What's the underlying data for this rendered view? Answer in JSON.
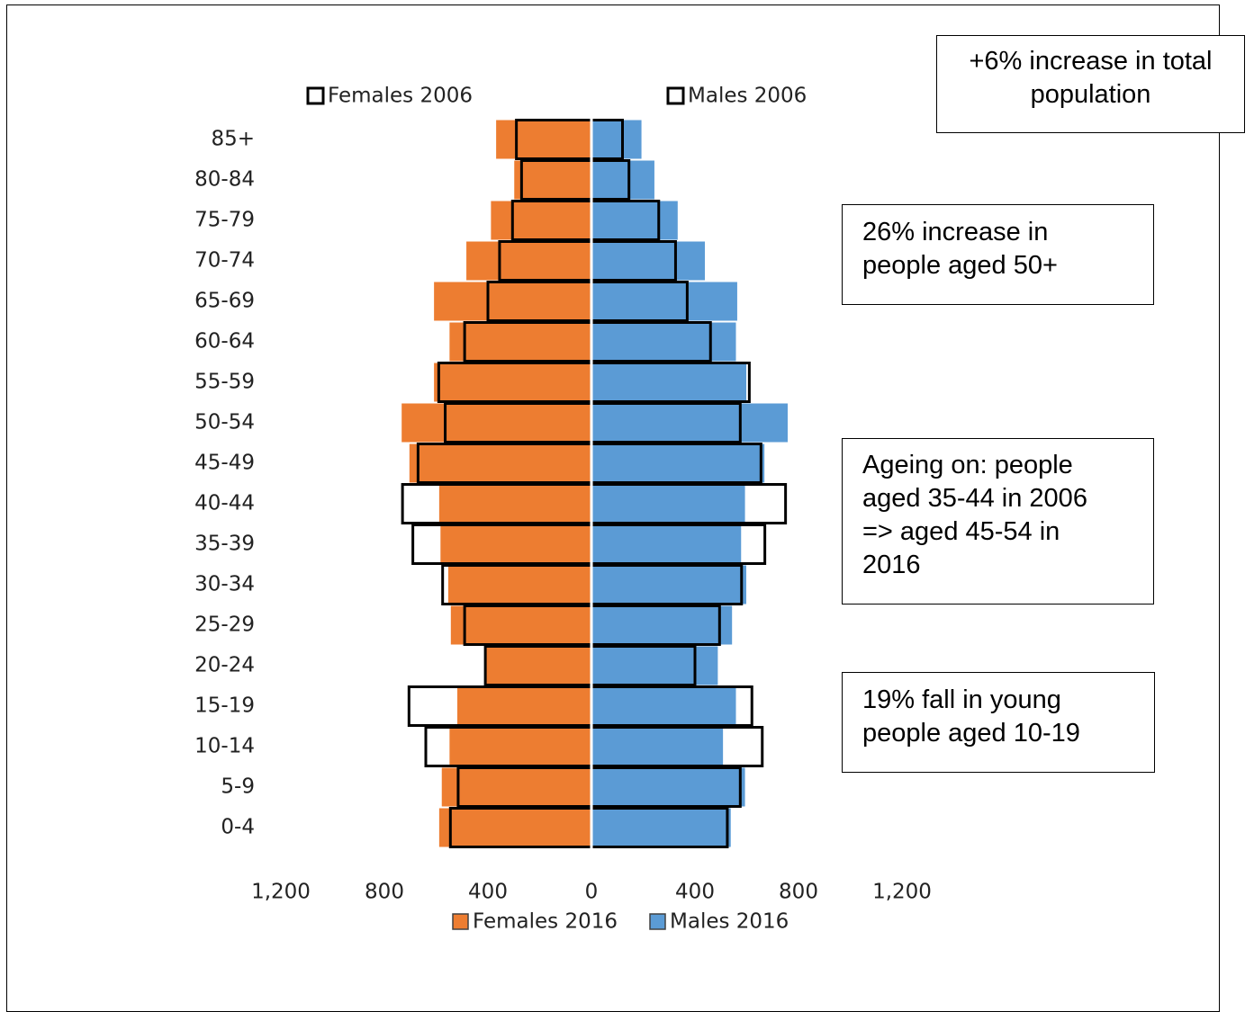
{
  "chart_data": {
    "type": "bar",
    "orientation": "horizontal",
    "layout": "population-pyramid",
    "categories": [
      "0-4",
      "5-9",
      "10-14",
      "15-19",
      "20-24",
      "25-29",
      "30-34",
      "35-39",
      "40-44",
      "45-49",
      "50-54",
      "55-59",
      "60-64",
      "65-69",
      "70-74",
      "75-79",
      "80-84",
      "85+"
    ],
    "series": [
      {
        "name": "Females 2016",
        "side": "left",
        "style": "filled",
        "color": "#ED7D31",
        "values": [
          590,
          580,
          550,
          520,
          415,
          545,
          555,
          585,
          590,
          705,
          735,
          610,
          550,
          610,
          485,
          390,
          300,
          370
        ]
      },
      {
        "name": "Males 2016",
        "side": "right",
        "style": "filled",
        "color": "#5B9BD5",
        "values": [
          540,
          595,
          510,
          560,
          490,
          545,
          600,
          580,
          595,
          670,
          760,
          600,
          560,
          565,
          440,
          335,
          245,
          195
        ]
      },
      {
        "name": "Females 2006",
        "side": "left",
        "style": "outline",
        "color": "#000000",
        "values": [
          545,
          515,
          640,
          705,
          410,
          490,
          575,
          690,
          730,
          670,
          565,
          590,
          490,
          400,
          355,
          305,
          270,
          290
        ]
      },
      {
        "name": "Males 2006",
        "side": "right",
        "style": "outline",
        "color": "#000000",
        "values": [
          525,
          575,
          660,
          620,
          400,
          495,
          580,
          670,
          750,
          655,
          575,
          610,
          460,
          370,
          325,
          260,
          145,
          120
        ]
      }
    ],
    "x_ticks": [
      "1,200",
      "800",
      "400",
      "0",
      "400",
      "800",
      "1,200"
    ],
    "xlim": [
      -1200,
      1200
    ],
    "legend": {
      "top": [
        "Females 2006",
        "Males 2006"
      ],
      "bottom": [
        "Females 2016",
        "Males 2016"
      ]
    },
    "grid": false
  },
  "annotations": {
    "total": [
      "+6% increase in total",
      "population"
    ],
    "aged50": [
      "26% increase in",
      "people aged 50+"
    ],
    "ageing": [
      "Ageing on: people",
      "aged 35-44 in 2006",
      "=> aged 45-54 in",
      "2016"
    ],
    "young": [
      "19% fall in young",
      "people aged 10-19"
    ]
  }
}
